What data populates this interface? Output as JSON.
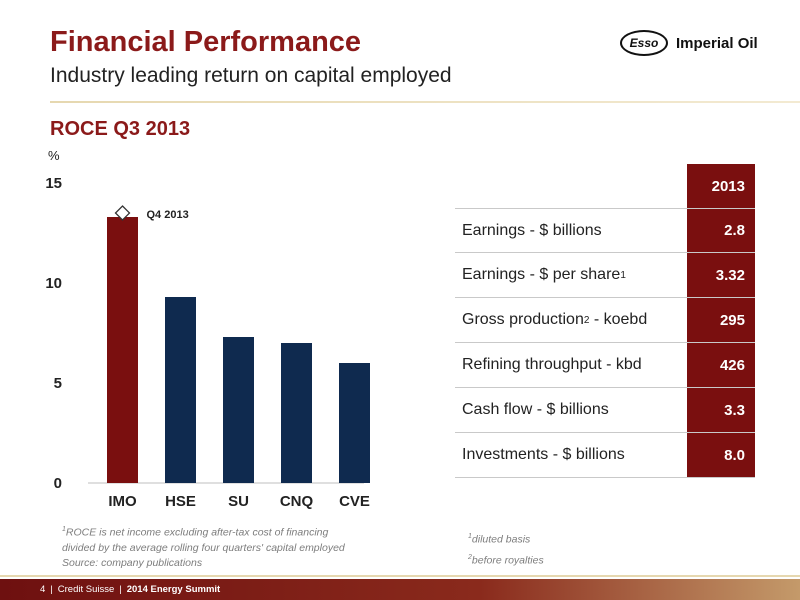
{
  "header": {
    "title": "Financial Performance",
    "subtitle": "Industry leading return on capital employed",
    "logo_esso": "Esso",
    "logo_text": "Imperial Oil"
  },
  "section_title": "ROCE Q3 2013",
  "chart_data": {
    "type": "bar",
    "ylabel": "%",
    "ylim": [
      0,
      15
    ],
    "yticks": [
      0,
      5,
      10,
      15
    ],
    "categories": [
      "IMO",
      "HSE",
      "SU",
      "CNQ",
      "CVE"
    ],
    "values": [
      13.3,
      9.3,
      7.3,
      7.0,
      6.0
    ],
    "colors": [
      "#7a0f0f",
      "#0f2a4f",
      "#0f2a4f",
      "#0f2a4f",
      "#0f2a4f"
    ],
    "marker": {
      "category": "IMO",
      "value": 13.2,
      "label": "Q4 2013",
      "shape": "diamond"
    },
    "grid": false
  },
  "table": {
    "year_header": "2013",
    "rows": [
      {
        "label": "Earnings - $ billions",
        "sup": "",
        "suffix": "",
        "value": "2.8"
      },
      {
        "label": "Earnings - $ per share",
        "sup": "1",
        "suffix": "",
        "value": "3.32"
      },
      {
        "label": "Gross production",
        "sup": "2",
        "suffix": " - koebd",
        "value": "295"
      },
      {
        "label": "Refining throughput - kbd",
        "sup": "",
        "suffix": "",
        "value": "426"
      },
      {
        "label": "Cash flow - $ billions",
        "sup": "",
        "suffix": "",
        "value": "3.3"
      },
      {
        "label": "Investments - $ billions",
        "sup": "",
        "suffix": "",
        "value": "8.0"
      }
    ]
  },
  "footnotes": {
    "left_sup": "1",
    "left_line1": "ROCE is net income excluding after-tax cost of financing",
    "left_line2": "divided by the average rolling four quarters' capital employed",
    "left_line3": "Source: company publications",
    "right_sup1": "1",
    "right_line1": "diluted basis",
    "right_sup2": "2",
    "right_line2": "before royalties"
  },
  "footer": {
    "page": "4",
    "org": "Credit Suisse",
    "event": "2014 Energy Summit"
  },
  "colors": {
    "brand_red": "#8b1a1a",
    "bar_red": "#7a0f0f",
    "bar_navy": "#0f2a4f"
  }
}
